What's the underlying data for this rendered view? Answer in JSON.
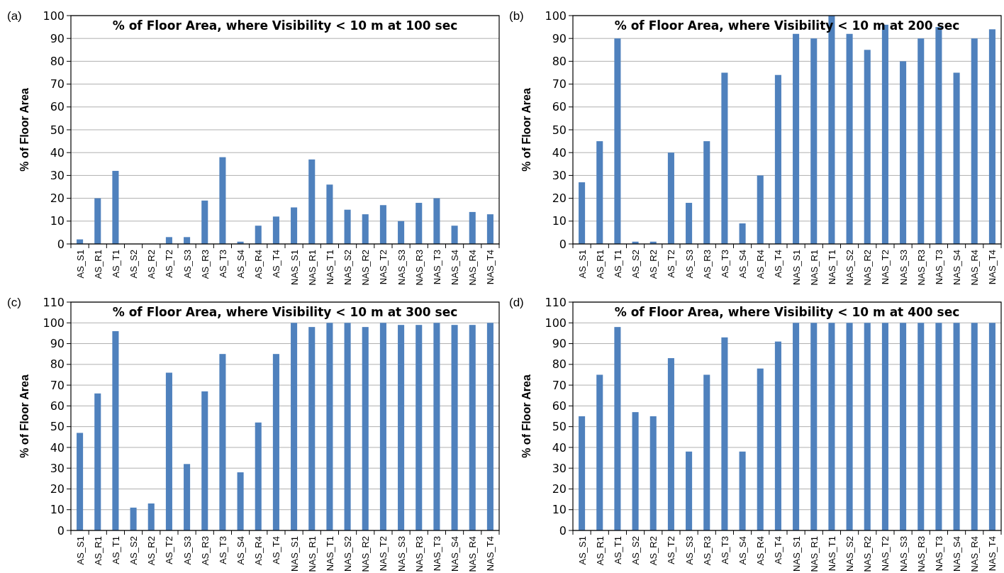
{
  "chart_data": [
    {
      "type": "bar",
      "title": "% of Floor Area, where Visibility < 10 m at 100 sec",
      "ylabel": "% of Floor Area",
      "annotations": [
        "(a)"
      ],
      "categories": [
        "AS_S1",
        "AS_R1",
        "AS_T1",
        "AS_S2",
        "AS_R2",
        "AS_T2",
        "AS_S3",
        "AS_R3",
        "AS_T3",
        "AS_S4",
        "AS_R4",
        "AS_T4",
        "NAS_S1",
        "NAS_R1",
        "NAS_T1",
        "NAS_S2",
        "NAS_R2",
        "NAS_T2",
        "NAS_S3",
        "NAS_R3",
        "NAS_T3",
        "NAS_S4",
        "NAS_R4",
        "NAS_T4"
      ],
      "values": [
        2,
        20,
        32,
        0,
        0,
        3,
        3,
        19,
        38,
        1,
        8,
        12,
        16,
        37,
        26,
        15,
        13,
        17,
        10,
        18,
        20,
        8,
        14,
        13
      ],
      "color": "#4f81bd",
      "ylim": [
        0,
        100
      ],
      "yticks": [
        0,
        10,
        20,
        30,
        40,
        50,
        60,
        70,
        80,
        90,
        100
      ],
      "grid": "y"
    },
    {
      "type": "bar",
      "title": "% of Floor Area, where Visibility < 10 m at 200 sec",
      "ylabel": "% of Floor Area",
      "annotations": [
        "(b)"
      ],
      "categories": [
        "AS_S1",
        "AS_R1",
        "AS_T1",
        "AS_S2",
        "AS_R2",
        "AS_T2",
        "AS_S3",
        "AS_R3",
        "AS_T3",
        "AS_S4",
        "AS_R4",
        "AS_T4",
        "NAS_S1",
        "NAS_R1",
        "NAS_T1",
        "NAS_S2",
        "NAS_R2",
        "NAS_T2",
        "NAS_S3",
        "NAS_R3",
        "NAS_T3",
        "NAS_S4",
        "NAS_R4",
        "NAS_T4"
      ],
      "values": [
        27,
        45,
        90,
        1,
        1,
        40,
        18,
        45,
        75,
        9,
        30,
        74,
        92,
        90,
        100,
        92,
        85,
        96,
        80,
        90,
        95,
        75,
        90,
        94
      ],
      "color": "#4f81bd",
      "ylim": [
        0,
        100
      ],
      "yticks": [
        0,
        10,
        20,
        30,
        40,
        50,
        60,
        70,
        80,
        90,
        100
      ],
      "grid": "y"
    },
    {
      "type": "bar",
      "title": "% of Floor Area, where Visibility < 10 m at 300 sec",
      "ylabel": "% of Floor Area",
      "annotations": [
        "(c)"
      ],
      "categories": [
        "AS_S1",
        "AS_R1",
        "AS_T1",
        "AS_S2",
        "AS_R2",
        "AS_T2",
        "AS_S3",
        "AS_R3",
        "AS_T3",
        "AS_S4",
        "AS_R4",
        "AS_T4",
        "NAS_S1",
        "NAS_R1",
        "NAS_T1",
        "NAS_S2",
        "NAS_R2",
        "NAS_T2",
        "NAS_S3",
        "NAS_R3",
        "NAS_T3",
        "NAS_S4",
        "NAS_R4",
        "NAS_T4"
      ],
      "values": [
        47,
        66,
        96,
        11,
        13,
        76,
        32,
        67,
        85,
        28,
        52,
        85,
        100,
        98,
        100,
        100,
        98,
        100,
        99,
        99,
        100,
        99,
        99,
        100
      ],
      "color": "#4f81bd",
      "ylim": [
        0,
        110
      ],
      "yticks": [
        0,
        10,
        20,
        30,
        40,
        50,
        60,
        70,
        80,
        90,
        100,
        110
      ],
      "grid": "y"
    },
    {
      "type": "bar",
      "title": "% of Floor Area, where Visibility < 10 m at 400 sec",
      "ylabel": "% of Floor Area",
      "annotations": [
        "(d)"
      ],
      "categories": [
        "AS_S1",
        "AS_R1",
        "AS_T1",
        "AS_S2",
        "AS_R2",
        "AS_T2",
        "AS_S3",
        "AS_R3",
        "AS_T3",
        "AS_S4",
        "AS_R4",
        "AS_T4",
        "NAS_S1",
        "NAS_R1",
        "NAS_T1",
        "NAS_S2",
        "NAS_R2",
        "NAS_T2",
        "NAS_S3",
        "NAS_R3",
        "NAS_T3",
        "NAS_S4",
        "NAS_R4",
        "NAS_T4"
      ],
      "values": [
        55,
        75,
        98,
        57,
        55,
        83,
        38,
        75,
        93,
        38,
        78,
        91,
        100,
        100,
        100,
        100,
        100,
        100,
        100,
        100,
        100,
        100,
        100,
        100
      ],
      "color": "#4f81bd",
      "ylim": [
        0,
        110
      ],
      "yticks": [
        0,
        10,
        20,
        30,
        40,
        50,
        60,
        70,
        80,
        90,
        100,
        110
      ],
      "grid": "y"
    }
  ]
}
